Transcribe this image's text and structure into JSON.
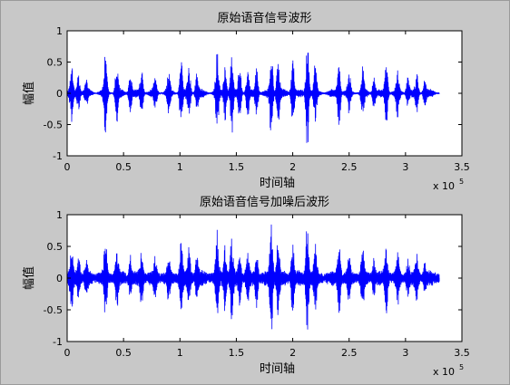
{
  "chart_data": [
    {
      "type": "line",
      "title": "原始语音信号波形",
      "xlabel": "时间轴",
      "ylabel": "幅值",
      "xlim": [
        0,
        350000
      ],
      "ylim": [
        -1,
        1
      ],
      "xticks": [
        "0",
        "0.5",
        "1",
        "1.5",
        "2",
        "2.5",
        "3",
        "3.5"
      ],
      "yticks": [
        "1",
        "0.5",
        "0",
        "-0.5",
        "-1"
      ],
      "x_multiplier": "x 10",
      "x_multiplier_exp": "5",
      "grid": false,
      "line_color": "#0000ff",
      "signal_end": 330000,
      "noise_level": 0.01,
      "bursts": [
        {
          "x": 4000,
          "amp": 0.4
        },
        {
          "x": 10000,
          "amp": 0.3
        },
        {
          "x": 17000,
          "amp": 0.2
        },
        {
          "x": 34000,
          "amp": 0.62
        },
        {
          "x": 44000,
          "amp": 0.45
        },
        {
          "x": 56000,
          "amp": 0.3
        },
        {
          "x": 66000,
          "amp": 0.38
        },
        {
          "x": 78000,
          "amp": 0.25
        },
        {
          "x": 90000,
          "amp": 0.3
        },
        {
          "x": 101000,
          "amp": 0.55
        },
        {
          "x": 108000,
          "amp": 0.4
        },
        {
          "x": 115000,
          "amp": 0.3
        },
        {
          "x": 133000,
          "amp": 0.65
        },
        {
          "x": 140000,
          "amp": 0.5
        },
        {
          "x": 146000,
          "amp": 0.6
        },
        {
          "x": 153000,
          "amp": 0.45
        },
        {
          "x": 160000,
          "amp": 0.35
        },
        {
          "x": 168000,
          "amp": 0.4
        },
        {
          "x": 181000,
          "amp": 0.85
        },
        {
          "x": 187000,
          "amp": 0.6
        },
        {
          "x": 200000,
          "amp": 0.55
        },
        {
          "x": 213000,
          "amp": 0.92
        },
        {
          "x": 220000,
          "amp": 0.45
        },
        {
          "x": 241000,
          "amp": 0.55
        },
        {
          "x": 250000,
          "amp": 0.3
        },
        {
          "x": 262000,
          "amp": 0.4
        },
        {
          "x": 272000,
          "amp": 0.25
        },
        {
          "x": 283000,
          "amp": 0.5
        },
        {
          "x": 293000,
          "amp": 0.35
        },
        {
          "x": 302000,
          "amp": 0.25
        },
        {
          "x": 310000,
          "amp": 0.28
        },
        {
          "x": 317000,
          "amp": 0.2
        }
      ]
    },
    {
      "type": "line",
      "title": "原始语音信号加噪后波形",
      "xlabel": "时间轴",
      "ylabel": "幅值",
      "xlim": [
        0,
        350000
      ],
      "ylim": [
        -1,
        1
      ],
      "xticks": [
        "0",
        "0.5",
        "1",
        "1.5",
        "2",
        "2.5",
        "3",
        "3.5"
      ],
      "yticks": [
        "1",
        "0.5",
        "0",
        "-0.5",
        "-1"
      ],
      "x_multiplier": "x 10",
      "x_multiplier_exp": "5",
      "grid": false,
      "line_color": "#0000ff",
      "signal_end": 330000,
      "noise_level": 0.05,
      "bursts": [
        {
          "x": 4000,
          "amp": 0.4
        },
        {
          "x": 10000,
          "amp": 0.3
        },
        {
          "x": 17000,
          "amp": 0.2
        },
        {
          "x": 34000,
          "amp": 0.62
        },
        {
          "x": 44000,
          "amp": 0.45
        },
        {
          "x": 56000,
          "amp": 0.3
        },
        {
          "x": 66000,
          "amp": 0.38
        },
        {
          "x": 78000,
          "amp": 0.25
        },
        {
          "x": 90000,
          "amp": 0.3
        },
        {
          "x": 101000,
          "amp": 0.55
        },
        {
          "x": 108000,
          "amp": 0.4
        },
        {
          "x": 115000,
          "amp": 0.3
        },
        {
          "x": 133000,
          "amp": 0.65
        },
        {
          "x": 140000,
          "amp": 0.5
        },
        {
          "x": 146000,
          "amp": 0.6
        },
        {
          "x": 153000,
          "amp": 0.45
        },
        {
          "x": 160000,
          "amp": 0.35
        },
        {
          "x": 168000,
          "amp": 0.4
        },
        {
          "x": 181000,
          "amp": 0.85
        },
        {
          "x": 187000,
          "amp": 0.6
        },
        {
          "x": 200000,
          "amp": 0.55
        },
        {
          "x": 213000,
          "amp": 0.92
        },
        {
          "x": 220000,
          "amp": 0.45
        },
        {
          "x": 241000,
          "amp": 0.55
        },
        {
          "x": 250000,
          "amp": 0.3
        },
        {
          "x": 262000,
          "amp": 0.4
        },
        {
          "x": 272000,
          "amp": 0.25
        },
        {
          "x": 283000,
          "amp": 0.5
        },
        {
          "x": 293000,
          "amp": 0.35
        },
        {
          "x": 302000,
          "amp": 0.25
        },
        {
          "x": 310000,
          "amp": 0.28
        },
        {
          "x": 317000,
          "amp": 0.2
        }
      ]
    }
  ]
}
